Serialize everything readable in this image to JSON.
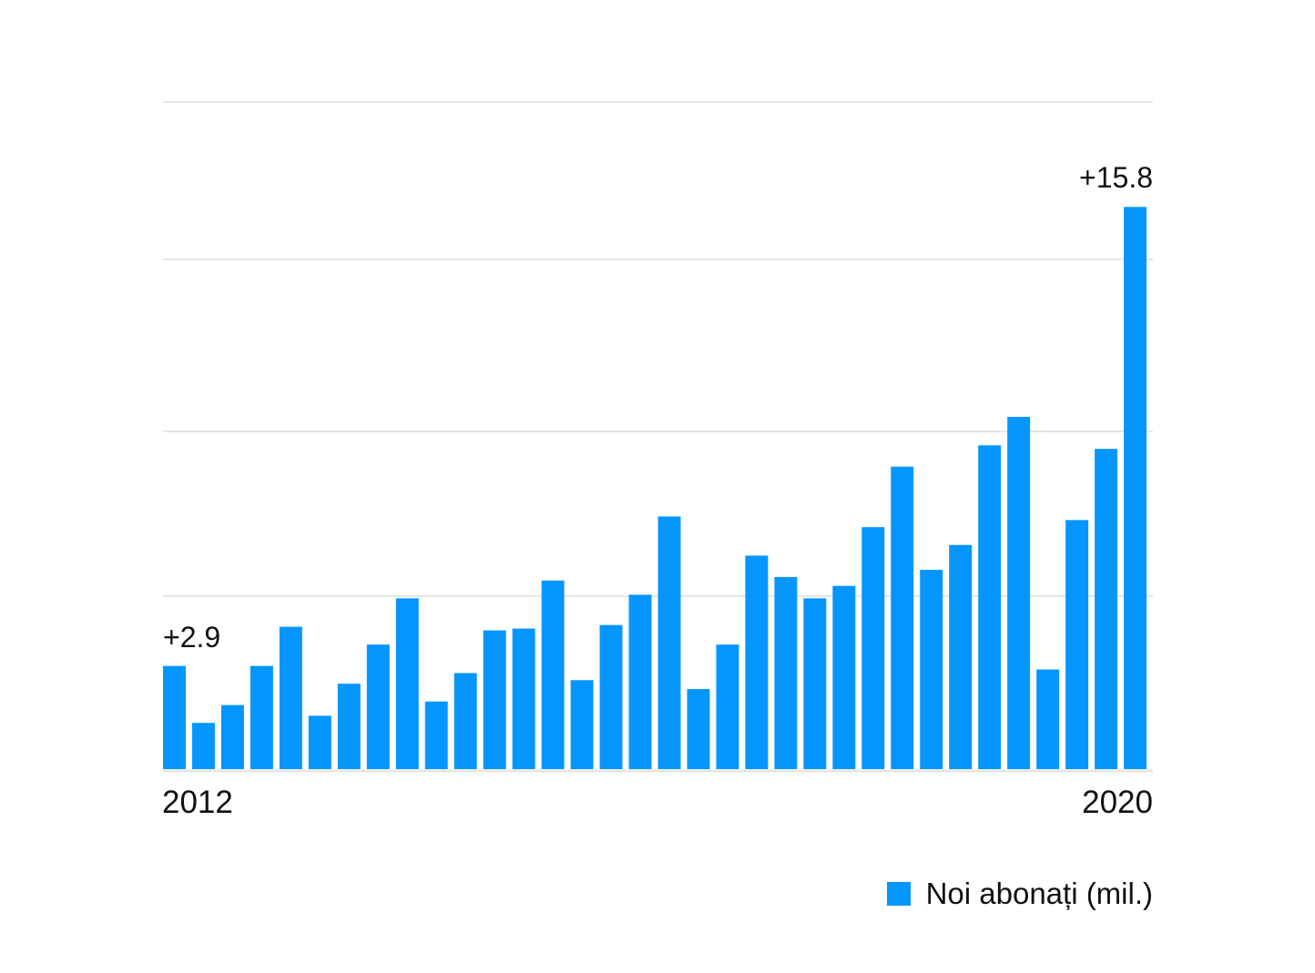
{
  "colors": {
    "bar": "#0596fd",
    "grid": "#e6e6e6",
    "text": "#111111"
  },
  "chart_data": {
    "type": "bar",
    "title": "",
    "xlabel": "",
    "ylabel": "",
    "ylim": [
      0,
      18.75
    ],
    "grid": true,
    "legend": "bottom-right",
    "series": [
      {
        "name": "Noi abonați (mil.)",
        "values": [
          2.9,
          1.3,
          1.8,
          2.9,
          4.0,
          1.5,
          2.4,
          3.5,
          4.8,
          1.9,
          2.7,
          3.9,
          3.95,
          5.3,
          2.5,
          4.05,
          4.9,
          7.1,
          2.25,
          3.5,
          6.0,
          5.4,
          4.8,
          5.15,
          6.8,
          8.5,
          5.6,
          6.3,
          9.1,
          9.9,
          2.8,
          7.0,
          9.0,
          15.8
        ]
      }
    ],
    "tick_labels": {
      "first": "2012",
      "last": "2020"
    },
    "annotations": {
      "first": "+2.9",
      "last": "+15.8"
    }
  }
}
